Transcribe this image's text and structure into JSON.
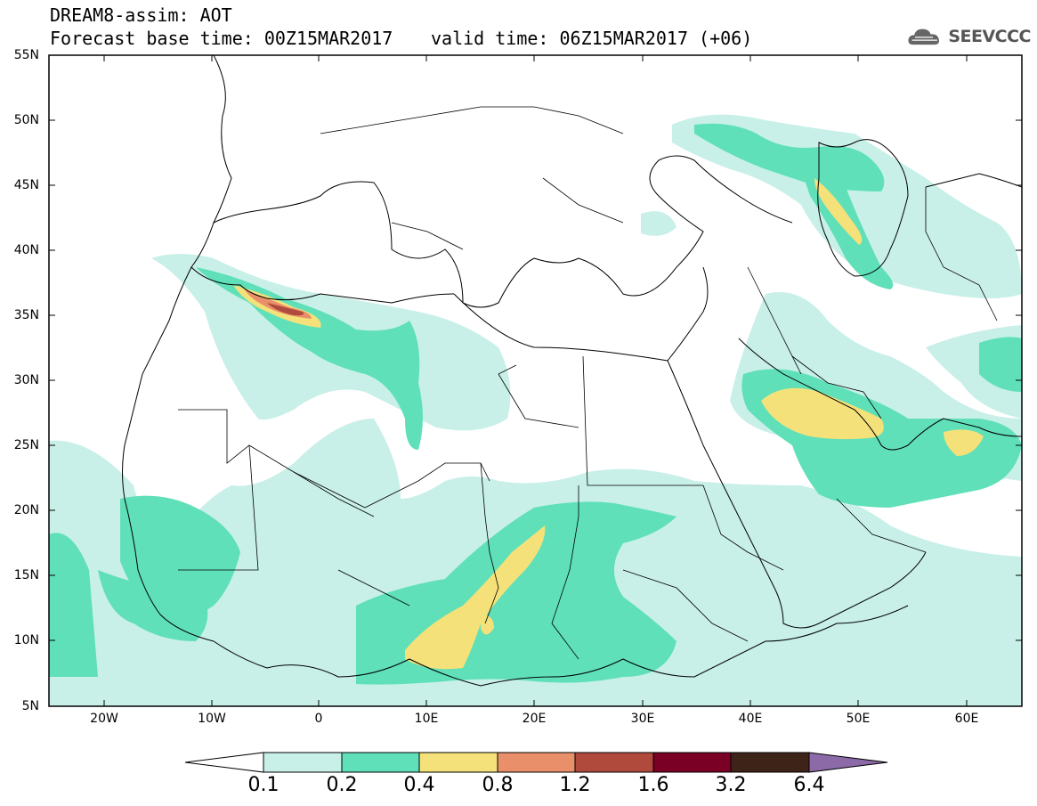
{
  "header": {
    "title": "DREAM8-assim: AOT",
    "base_time": "Forecast base time: 00Z15MAR2017",
    "valid_time": "valid time: 06Z15MAR2017 (+06)"
  },
  "logo": {
    "text": "SEEVCCC",
    "icon": "cloud-icon"
  },
  "map": {
    "lat_ticks": [
      "55N",
      "50N",
      "45N",
      "40N",
      "35N",
      "30N",
      "25N",
      "20N",
      "15N",
      "10N",
      "5N"
    ],
    "lon_ticks": [
      "20W",
      "10W",
      "0",
      "10E",
      "20E",
      "30E",
      "40E",
      "50E",
      "60E"
    ]
  },
  "colorbar": {
    "labels": [
      "0.1",
      "0.2",
      "0.4",
      "0.8",
      "1.2",
      "1.6",
      "3.2",
      "6.4"
    ],
    "colors": [
      "#c8f0e8",
      "#5fe0b8",
      "#f5e17a",
      "#e9906a",
      "#b04a3c",
      "#7a0026",
      "#3e2418",
      "#8c6aa8"
    ]
  }
}
